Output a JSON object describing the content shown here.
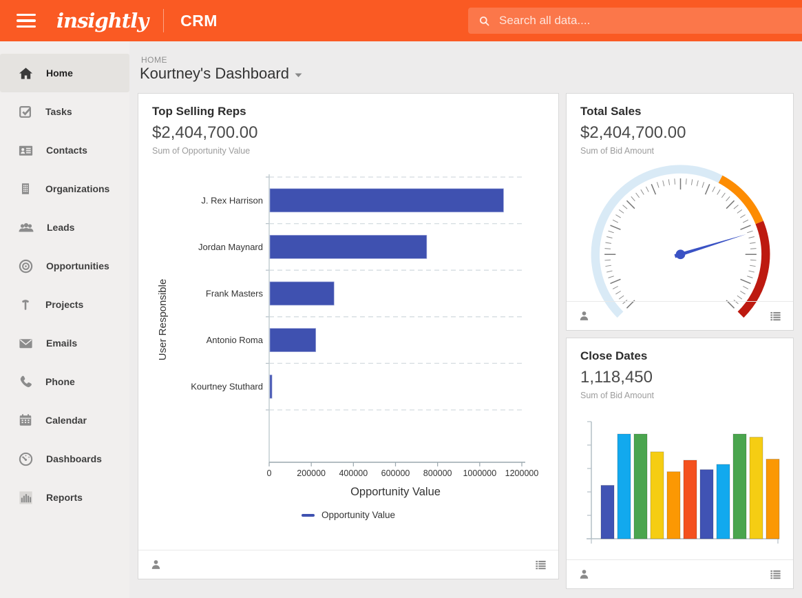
{
  "topbar": {
    "logo": "insightly",
    "product": "CRM",
    "search_placeholder": "Search all data....",
    "bg_color": "#fa5a23"
  },
  "breadcrumb": "HOME",
  "page_title": "Kourtney's Dashboard",
  "sidebar": {
    "items": [
      {
        "label": "Home",
        "active": true
      },
      {
        "label": "Tasks",
        "active": false
      },
      {
        "label": "Contacts",
        "active": false
      },
      {
        "label": "Organizations",
        "active": false
      },
      {
        "label": "Leads",
        "active": false
      },
      {
        "label": "Opportunities",
        "active": false
      },
      {
        "label": "Projects",
        "active": false
      },
      {
        "label": "Emails",
        "active": false
      },
      {
        "label": "Phone",
        "active": false
      },
      {
        "label": "Calendar",
        "active": false
      },
      {
        "label": "Dashboards",
        "active": false
      },
      {
        "label": "Reports",
        "active": false
      }
    ]
  },
  "cards": [
    {
      "title": "Top Selling Reps",
      "value": "$2,404,700.00",
      "subtitle": "Sum of Opportunity Value"
    },
    {
      "title": "Total Sales",
      "value": "$2,404,700.00",
      "subtitle": "Sum of Bid Amount"
    },
    {
      "title": "Close Dates",
      "value": "1,118,450",
      "subtitle": "Sum of Bid Amount"
    }
  ],
  "chart_data": [
    {
      "type": "bar",
      "orientation": "horizontal",
      "title": "Top Selling Reps",
      "categories": [
        "J. Rex Harrison",
        "Jordan Maynard",
        "Frank Masters",
        "Antonio Roma",
        "Kourtney Stuthard"
      ],
      "values": [
        1110000,
        745000,
        305000,
        218000,
        10000
      ],
      "values_note": "estimated from bar lengths; card total is 2404700",
      "xlabel": "Opportunity Value",
      "ylabel": "User Responsible",
      "xlim": [
        0,
        1200000
      ],
      "xticks": [
        0,
        200000,
        400000,
        600000,
        800000,
        1000000,
        1200000
      ],
      "legend_label": "Opportunity Value",
      "bar_color": "#3f51b0",
      "grid": "dashed-between-categories",
      "legend_position": "bottom-center"
    },
    {
      "type": "gauge",
      "title": "Total Sales",
      "value": 2404700,
      "start_deg": 225,
      "end_deg": -45,
      "segments": [
        {
          "from_deg": 225,
          "to_deg": 62,
          "color": "#d9eaf6"
        },
        {
          "from_deg": 62,
          "to_deg": 22,
          "color": "#fd8c02"
        },
        {
          "from_deg": 22,
          "to_deg": -45,
          "color": "#bd1a10"
        }
      ],
      "needle_deg": 17,
      "needle_color": "#3a52c4",
      "tick_color": "#8a8a8a"
    },
    {
      "type": "bar",
      "orientation": "vertical",
      "title": "Close Dates",
      "values_relative": [
        0.51,
        1.0,
        1.0,
        0.83,
        0.64,
        0.75,
        0.66,
        0.71,
        1.0,
        0.97,
        0.76
      ],
      "colors": [
        "#4053b4",
        "#12a9ee",
        "#4aa54e",
        "#f5cd13",
        "#fb9803",
        "#f4511e",
        "#4053b4",
        "#12a9ee",
        "#4aa54e",
        "#f5cd13",
        "#fb9803"
      ],
      "axis_labels": "none",
      "y_axis_ticks": 6
    }
  ]
}
